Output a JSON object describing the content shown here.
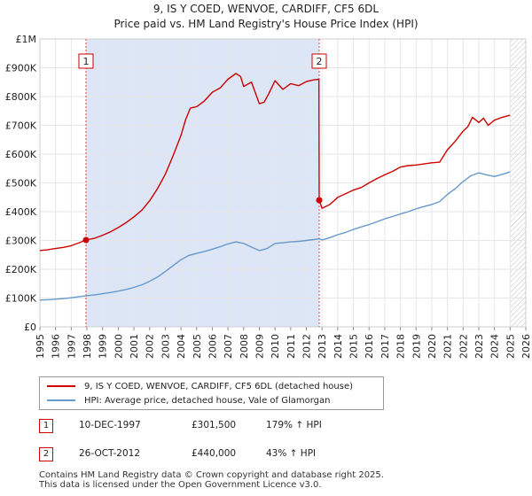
{
  "title": "9, IS Y COED, WENVOE, CARDIFF, CF5 6DL",
  "subtitle": "Price paid vs. HM Land Registry's House Price Index (HPI)",
  "colors": {
    "price_line": "#cc0000",
    "hpi_line": "#6699cc",
    "shade": "#dde6f7",
    "marker": "#cc0000"
  },
  "chart_data": {
    "type": "line",
    "ylim": [
      0,
      1000000
    ],
    "xlim": [
      1995,
      2026
    ],
    "y_ticks": [
      {
        "value": 0,
        "label": "£0"
      },
      {
        "value": 100000,
        "label": "£100K"
      },
      {
        "value": 200000,
        "label": "£200K"
      },
      {
        "value": 300000,
        "label": "£300K"
      },
      {
        "value": 400000,
        "label": "£400K"
      },
      {
        "value": 500000,
        "label": "£500K"
      },
      {
        "value": 600000,
        "label": "£600K"
      },
      {
        "value": 700000,
        "label": "£700K"
      },
      {
        "value": 800000,
        "label": "£800K"
      },
      {
        "value": 900000,
        "label": "£900K"
      },
      {
        "value": 1000000,
        "label": "£1M"
      }
    ],
    "x_ticks": [
      "1995",
      "1996",
      "1997",
      "1998",
      "1999",
      "2000",
      "2001",
      "2002",
      "2003",
      "2004",
      "2005",
      "2006",
      "2007",
      "2008",
      "2009",
      "2010",
      "2011",
      "2012",
      "2013",
      "2014",
      "2015",
      "2016",
      "2017",
      "2018",
      "2019",
      "2020",
      "2021",
      "2022",
      "2023",
      "2024",
      "2025",
      "2026"
    ],
    "shaded_period": [
      1997.94,
      2012.82
    ],
    "hatched_from": 2025.0,
    "series": [
      {
        "name": "9, IS Y COED, WENVOE, CARDIFF, CF5 6DL (detached house)",
        "x": [
          1995.0,
          1995.5,
          1996.0,
          1996.5,
          1997.0,
          1997.5,
          1997.94,
          1998.5,
          1999.0,
          1999.5,
          2000.0,
          2000.5,
          2001.0,
          2001.5,
          2002.0,
          2002.5,
          2003.0,
          2003.5,
          2004.0,
          2004.3,
          2004.6,
          2005.0,
          2005.5,
          2006.0,
          2006.5,
          2007.0,
          2007.5,
          2007.8,
          2008.0,
          2008.5,
          2009.0,
          2009.3,
          2009.6,
          2010.0,
          2010.5,
          2011.0,
          2011.5,
          2012.0,
          2012.5,
          2012.8,
          2012.82,
          2013.0,
          2013.5,
          2014.0,
          2014.5,
          2015.0,
          2015.5,
          2016.0,
          2016.5,
          2017.0,
          2017.5,
          2018.0,
          2018.5,
          2019.0,
          2019.5,
          2020.0,
          2020.5,
          2021.0,
          2021.5,
          2022.0,
          2022.3,
          2022.6,
          2023.0,
          2023.3,
          2023.6,
          2024.0,
          2024.5,
          2025.0
        ],
        "values": [
          265000,
          268000,
          272000,
          276000,
          282000,
          292000,
          301500,
          308000,
          318000,
          330000,
          345000,
          362000,
          382000,
          405000,
          438000,
          480000,
          530000,
          595000,
          665000,
          720000,
          760000,
          765000,
          785000,
          815000,
          830000,
          860000,
          880000,
          870000,
          835000,
          850000,
          775000,
          780000,
          810000,
          855000,
          825000,
          845000,
          838000,
          852000,
          858000,
          860000,
          440000,
          412000,
          425000,
          450000,
          462000,
          475000,
          484000,
          500000,
          515000,
          528000,
          540000,
          555000,
          560000,
          562000,
          566000,
          570000,
          572000,
          615000,
          645000,
          680000,
          695000,
          728000,
          710000,
          725000,
          700000,
          718000,
          728000,
          735000
        ]
      },
      {
        "name": "HPI: Average price, detached house, Vale of Glamorgan",
        "x": [
          1995.0,
          1995.5,
          1996.0,
          1996.5,
          1997.0,
          1997.5,
          1997.94,
          1998.5,
          1999.0,
          1999.5,
          2000.0,
          2000.5,
          2001.0,
          2001.5,
          2002.0,
          2002.5,
          2003.0,
          2003.5,
          2004.0,
          2004.5,
          2005.0,
          2005.5,
          2006.0,
          2006.5,
          2007.0,
          2007.5,
          2008.0,
          2008.5,
          2009.0,
          2009.5,
          2010.0,
          2010.5,
          2011.0,
          2011.5,
          2012.0,
          2012.5,
          2012.82,
          2013.0,
          2013.5,
          2014.0,
          2014.5,
          2015.0,
          2015.5,
          2016.0,
          2016.5,
          2017.0,
          2017.5,
          2018.0,
          2018.5,
          2019.0,
          2019.5,
          2020.0,
          2020.5,
          2021.0,
          2021.5,
          2022.0,
          2022.5,
          2023.0,
          2023.5,
          2024.0,
          2024.5,
          2025.0
        ],
        "values": [
          93000,
          94000,
          96000,
          98000,
          101000,
          105000,
          108000,
          111000,
          115000,
          119000,
          124000,
          130000,
          137000,
          146000,
          158000,
          173000,
          192000,
          213000,
          233000,
          248000,
          255000,
          262000,
          270000,
          278000,
          288000,
          295000,
          290000,
          277000,
          265000,
          272000,
          290000,
          292000,
          295000,
          297000,
          300000,
          303000,
          306000,
          302000,
          310000,
          320000,
          328000,
          338000,
          347000,
          355000,
          365000,
          375000,
          383000,
          392000,
          400000,
          410000,
          418000,
          425000,
          435000,
          460000,
          480000,
          505000,
          525000,
          535000,
          528000,
          522000,
          530000,
          538000
        ]
      }
    ],
    "annotations": [
      {
        "label": "1",
        "x": 1997.94,
        "value": 301500
      },
      {
        "label": "2",
        "x": 2012.82,
        "value": 440000
      }
    ]
  },
  "legend": {
    "price": "9, IS Y COED, WENVOE, CARDIFF, CF5 6DL (detached house)",
    "hpi": "HPI: Average price, detached house, Vale of Glamorgan"
  },
  "sales": [
    {
      "num": "1",
      "date": "10-DEC-1997",
      "price": "£301,500",
      "hpi": "179% ↑ HPI"
    },
    {
      "num": "2",
      "date": "26-OCT-2012",
      "price": "£440,000",
      "hpi": "43% ↑ HPI"
    }
  ],
  "footer": {
    "line1": "Contains HM Land Registry data © Crown copyright and database right 2025.",
    "line2": "This data is licensed under the Open Government Licence v3.0."
  }
}
